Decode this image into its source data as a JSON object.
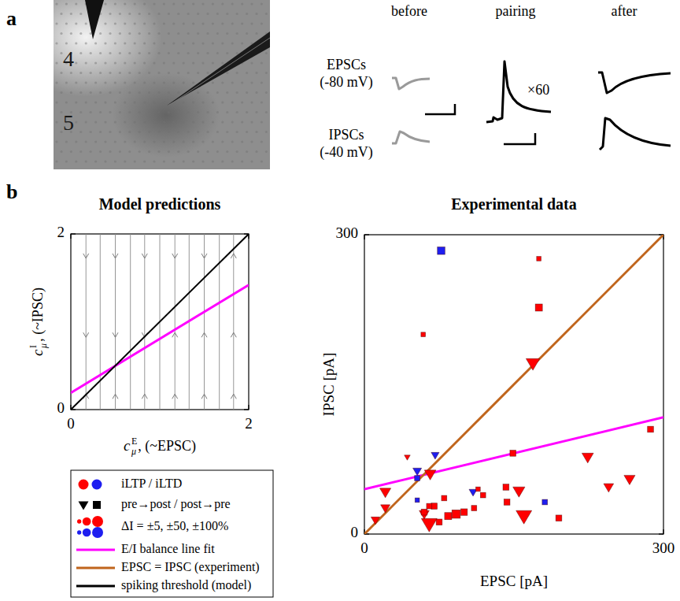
{
  "figure_labels": [
    "a",
    "b"
  ],
  "panel_a": {
    "layer_labels": [
      "4",
      "5"
    ],
    "columns": [
      "before",
      "pairing",
      "after"
    ],
    "rows": [
      {
        "label": "EPSCs",
        "holding": "(-80 mV)"
      },
      {
        "label": "IPSCs",
        "holding": "(-40 mV)"
      }
    ],
    "repeat_label": "×60"
  },
  "chart_data": [
    {
      "type": "line",
      "title": "Model predictions",
      "x_label": {
        "base": "c",
        "sup": "E",
        "sub": "μ",
        "text": ", (~EPSC)"
      },
      "y_label": {
        "base": "c",
        "sup": "I",
        "sub": "μ",
        "text": ", (~IPSC)"
      },
      "xlim": [
        0,
        2
      ],
      "ylim": [
        0,
        2
      ],
      "xticks": [
        0,
        2
      ],
      "yticks": [
        0,
        2
      ],
      "field_x": [
        0.17,
        0.33,
        0.5,
        0.67,
        0.83,
        1.0,
        1.17,
        1.33,
        1.5,
        1.67,
        1.83
      ],
      "arrow_levels": [
        1.75,
        0.85,
        0.15
      ],
      "lines": [
        {
          "x": [
            0,
            2
          ],
          "values": [
            0.19,
            1.42
          ],
          "color": "#ff00ff"
        },
        {
          "x": [
            0,
            2
          ],
          "values": [
            0,
            2
          ],
          "color": "#000000"
        }
      ]
    },
    {
      "type": "scatter",
      "title": "Experimental data",
      "x_label": "EPSC [pA]",
      "y_label": "IPSC [pA]",
      "xlim": [
        0,
        300
      ],
      "ylim": [
        0,
        300
      ],
      "xticks": [
        0,
        300
      ],
      "yticks": [
        0,
        300
      ],
      "lines": [
        {
          "x": [
            0,
            300
          ],
          "values": [
            45,
            117
          ],
          "color": "#ff00ff"
        },
        {
          "x": [
            0,
            300
          ],
          "values": [
            0,
            300
          ],
          "color": "#c0651c"
        }
      ],
      "series": [
        {
          "marker": "triangle",
          "x": [
            71,
            53,
            109,
            169,
            43,
            224,
            266,
            245,
            66,
            21,
            11,
            21,
            65,
            160,
            155,
            60
          ],
          "values": [
            79,
            63,
            42,
            171,
            77,
            77,
            55,
            47,
            60,
            42,
            14,
            26,
            10,
            18,
            43,
            20
          ],
          "delta_I": [
            -15,
            -20,
            -15,
            70,
            5,
            45,
            40,
            30,
            45,
            40,
            20,
            25,
            100,
            100,
            50,
            30
          ],
          "colors": [
            "#1e1ef0",
            "#1e1ef0",
            "#1e1ef0",
            "#ff0000",
            "#ff0000",
            "#ff0000",
            "#ff0000",
            "#ff0000",
            "#ff0000",
            "#ff0000",
            "#ff0000",
            "#ff0000",
            "#ff0000",
            "#ff0000",
            "#ff0000",
            "#ff0000"
          ]
        },
        {
          "marker": "square",
          "x": [
            77,
            53,
            181,
            53,
            175,
            175,
            59,
            149,
            287,
            195,
            60,
            70,
            80,
            84,
            92,
            100,
            110,
            119,
            143,
            75,
            65,
            114,
            142
          ],
          "values": [
            284,
            56,
            32,
            34,
            276,
            227,
            200,
            81,
            105,
            16,
            22,
            28,
            36,
            18,
            20,
            22,
            26,
            39,
            32,
            12,
            28,
            45,
            47
          ],
          "delta_I": [
            -30,
            -10,
            -10,
            -5,
            5,
            25,
            5,
            15,
            15,
            15,
            15,
            15,
            10,
            25,
            40,
            20,
            10,
            10,
            15,
            15,
            10,
            5,
            15
          ],
          "colors": [
            "#1e1ef0",
            "#1e1ef0",
            "#1e1ef0",
            "#1e1ef0",
            "#ff0000",
            "#ff0000",
            "#ff0000",
            "#ff0000",
            "#ff0000",
            "#ff0000",
            "#ff0000",
            "#ff0000",
            "#ff0000",
            "#ff0000",
            "#ff0000",
            "#ff0000",
            "#ff0000",
            "#ff0000",
            "#ff0000",
            "#ff0000",
            "#ff0000",
            "#ff0000",
            "#ff0000"
          ]
        }
      ]
    }
  ],
  "legend_box": {
    "entries": [
      {
        "label": "iLTP / iLTD",
        "colors": [
          "#ff0000",
          "#1e1ef0"
        ],
        "marker": "circle"
      },
      {
        "label": "pre→post / post→pre",
        "markers": [
          "triangle",
          "square"
        ],
        "color": "#000000"
      },
      {
        "label": "ΔI = ±5, ±50, ±100%",
        "sizes": [
          5,
          50,
          100
        ],
        "colors": [
          "#ff0000",
          "#1e1ef0"
        ],
        "marker": "circle"
      },
      {
        "label": "E/I balance line fit",
        "color": "#ff00ff",
        "line_style": "solid"
      },
      {
        "label": "EPSC = IPSC (experiment)",
        "color": "#c0651c",
        "line_style": "solid"
      },
      {
        "label": "spiking threshold (model)",
        "color": "#000000",
        "line_style": "solid"
      }
    ]
  }
}
